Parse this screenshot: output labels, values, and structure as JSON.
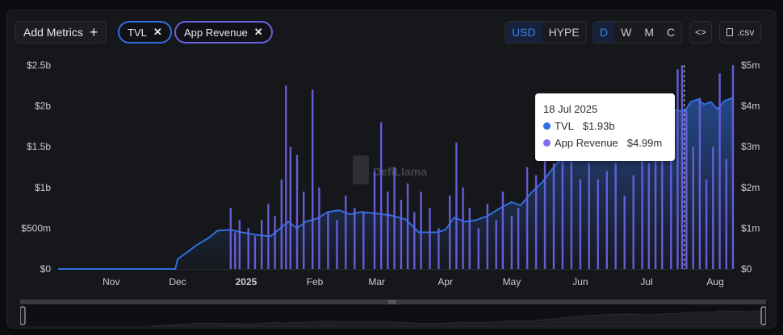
{
  "toolbar": {
    "add_metrics_label": "Add Metrics",
    "chips": [
      {
        "label": "TVL",
        "color": "#2f6fe0"
      },
      {
        "label": "App Revenue",
        "color": "#6c5fe0"
      }
    ],
    "currency": [
      "USD",
      "HYPE"
    ],
    "currency_active": "USD",
    "groupings": [
      "D",
      "W",
      "M",
      "C"
    ],
    "grouping_active": "D",
    "embed_label": "<>",
    "csv_label": ".csv"
  },
  "watermark": "DefiLlama",
  "tooltip": {
    "date": "18 Jul 2025",
    "rows": [
      {
        "label": "TVL",
        "value": "$1.93b",
        "color": "#2f6fe0"
      },
      {
        "label": "App Revenue",
        "value": "$4.99m",
        "color": "#7b6ff0"
      }
    ]
  },
  "chart_data": {
    "type": "bar",
    "start_date": "2024-10-08",
    "end_date": "2025-08-09",
    "hover_date": "2025-07-18",
    "x_ticks": [
      {
        "label": "Nov",
        "date": "2024-11-01"
      },
      {
        "label": "Dec",
        "date": "2024-12-01"
      },
      {
        "label": "2025",
        "date": "2025-01-01",
        "bold": true
      },
      {
        "label": "Feb",
        "date": "2025-02-01"
      },
      {
        "label": "Mar",
        "date": "2025-03-01"
      },
      {
        "label": "Apr",
        "date": "2025-04-01"
      },
      {
        "label": "May",
        "date": "2025-05-01"
      },
      {
        "label": "Jun",
        "date": "2025-06-01"
      },
      {
        "label": "Jul",
        "date": "2025-07-01"
      },
      {
        "label": "Aug",
        "date": "2025-08-01"
      }
    ],
    "y_left": {
      "min": 0,
      "max": 2.5,
      "ticks": [
        0,
        0.5,
        1,
        1.5,
        2,
        2.5
      ],
      "labels": [
        "$0",
        "$500m",
        "$1b",
        "$1.5b",
        "$2b",
        "$2.5b"
      ]
    },
    "y_right": {
      "min": 0,
      "max": 5,
      "ticks": [
        0,
        1,
        2,
        3,
        4,
        5
      ],
      "labels": [
        "$0",
        "$1m",
        "$2m",
        "$3m",
        "$4m",
        "$5m"
      ]
    },
    "series": [
      {
        "name": "TVL",
        "axis": "left",
        "style": "area",
        "color": "#2f6fe0",
        "points": [
          [
            "2024-10-08",
            0
          ],
          [
            "2024-11-30",
            0
          ],
          [
            "2024-12-01",
            0.12
          ],
          [
            "2024-12-05",
            0.2
          ],
          [
            "2024-12-10",
            0.3
          ],
          [
            "2024-12-15",
            0.38
          ],
          [
            "2024-12-19",
            0.47
          ],
          [
            "2024-12-25",
            0.48
          ],
          [
            "2024-12-30",
            0.45
          ],
          [
            "2025-01-05",
            0.42
          ],
          [
            "2025-01-12",
            0.4
          ],
          [
            "2025-01-20",
            0.58
          ],
          [
            "2025-01-24",
            0.5
          ],
          [
            "2025-01-28",
            0.58
          ],
          [
            "2025-02-02",
            0.62
          ],
          [
            "2025-02-07",
            0.7
          ],
          [
            "2025-02-12",
            0.72
          ],
          [
            "2025-02-17",
            0.67
          ],
          [
            "2025-02-22",
            0.7
          ],
          [
            "2025-03-01",
            0.68
          ],
          [
            "2025-03-07",
            0.66
          ],
          [
            "2025-03-14",
            0.61
          ],
          [
            "2025-03-20",
            0.45
          ],
          [
            "2025-03-28",
            0.45
          ],
          [
            "2025-04-01",
            0.48
          ],
          [
            "2025-04-05",
            0.63
          ],
          [
            "2025-04-10",
            0.58
          ],
          [
            "2025-04-15",
            0.6
          ],
          [
            "2025-04-20",
            0.65
          ],
          [
            "2025-04-26",
            0.75
          ],
          [
            "2025-05-01",
            0.82
          ],
          [
            "2025-05-05",
            0.78
          ],
          [
            "2025-05-10",
            0.94
          ],
          [
            "2025-05-15",
            1.07
          ],
          [
            "2025-05-20",
            1.25
          ],
          [
            "2025-05-25",
            1.4
          ],
          [
            "2025-06-01",
            1.53
          ],
          [
            "2025-06-05",
            1.59
          ],
          [
            "2025-06-10",
            1.63
          ],
          [
            "2025-06-15",
            1.68
          ],
          [
            "2025-06-20",
            1.56
          ],
          [
            "2025-06-25",
            1.6
          ],
          [
            "2025-06-30",
            1.72
          ],
          [
            "2025-07-03",
            1.7
          ],
          [
            "2025-07-07",
            1.82
          ],
          [
            "2025-07-10",
            1.88
          ],
          [
            "2025-07-14",
            1.95
          ],
          [
            "2025-07-18",
            1.93
          ],
          [
            "2025-07-21",
            2.05
          ],
          [
            "2025-07-24",
            2.08
          ],
          [
            "2025-07-27",
            2.02
          ],
          [
            "2025-07-30",
            2.05
          ],
          [
            "2025-08-02",
            1.96
          ],
          [
            "2025-08-05",
            2.06
          ],
          [
            "2025-08-09",
            2.1
          ]
        ]
      },
      {
        "name": "App Revenue",
        "axis": "right",
        "style": "bar",
        "color": "#6c5fe0",
        "points": [
          [
            "2024-12-25",
            1.5
          ],
          [
            "2024-12-27",
            0.9
          ],
          [
            "2024-12-29",
            1.2
          ],
          [
            "2025-01-02",
            1.0
          ],
          [
            "2025-01-05",
            0.8
          ],
          [
            "2025-01-08",
            1.2
          ],
          [
            "2025-01-11",
            1.6
          ],
          [
            "2025-01-14",
            1.3
          ],
          [
            "2025-01-17",
            2.2
          ],
          [
            "2025-01-19",
            4.5
          ],
          [
            "2025-01-21",
            3.0
          ],
          [
            "2025-01-24",
            2.8
          ],
          [
            "2025-01-27",
            1.9
          ],
          [
            "2025-01-31",
            4.4
          ],
          [
            "2025-02-03",
            2.0
          ],
          [
            "2025-02-07",
            1.4
          ],
          [
            "2025-02-11",
            1.2
          ],
          [
            "2025-02-15",
            1.8
          ],
          [
            "2025-02-19",
            1.5
          ],
          [
            "2025-02-23",
            1.4
          ],
          [
            "2025-02-28",
            2.4
          ],
          [
            "2025-03-03",
            3.6
          ],
          [
            "2025-03-06",
            1.9
          ],
          [
            "2025-03-09",
            2.5
          ],
          [
            "2025-03-12",
            1.7
          ],
          [
            "2025-03-15",
            2.1
          ],
          [
            "2025-03-18",
            1.4
          ],
          [
            "2025-03-21",
            1.9
          ],
          [
            "2025-03-25",
            1.5
          ],
          [
            "2025-03-29",
            1.0
          ],
          [
            "2025-04-03",
            1.8
          ],
          [
            "2025-04-06",
            3.1
          ],
          [
            "2025-04-09",
            2.0
          ],
          [
            "2025-04-12",
            1.5
          ],
          [
            "2025-04-16",
            1.0
          ],
          [
            "2025-04-20",
            1.6
          ],
          [
            "2025-04-24",
            1.2
          ],
          [
            "2025-04-27",
            1.9
          ],
          [
            "2025-05-01",
            1.3
          ],
          [
            "2025-05-04",
            1.5
          ],
          [
            "2025-05-08",
            2.5
          ],
          [
            "2025-05-12",
            2.3
          ],
          [
            "2025-05-16",
            2.8
          ],
          [
            "2025-05-20",
            2.6
          ],
          [
            "2025-05-24",
            3.3
          ],
          [
            "2025-05-28",
            2.8
          ],
          [
            "2025-06-01",
            2.2
          ],
          [
            "2025-06-05",
            2.6
          ],
          [
            "2025-06-09",
            2.2
          ],
          [
            "2025-06-13",
            2.4
          ],
          [
            "2025-06-17",
            2.6
          ],
          [
            "2025-06-21",
            1.8
          ],
          [
            "2025-06-25",
            2.3
          ],
          [
            "2025-06-29",
            3.0
          ],
          [
            "2025-07-02",
            2.6
          ],
          [
            "2025-07-05",
            3.3
          ],
          [
            "2025-07-08",
            2.9
          ],
          [
            "2025-07-12",
            3.6
          ],
          [
            "2025-07-15",
            4.9
          ],
          [
            "2025-07-17",
            5.0
          ],
          [
            "2025-07-19",
            3.9
          ],
          [
            "2025-07-22",
            3.0
          ],
          [
            "2025-07-25",
            4.2
          ],
          [
            "2025-07-28",
            2.2
          ],
          [
            "2025-07-31",
            3.0
          ],
          [
            "2025-08-03",
            4.8
          ],
          [
            "2025-08-06",
            2.7
          ],
          [
            "2025-08-09",
            5.0
          ]
        ]
      }
    ],
    "grid": false,
    "legend": "none"
  }
}
